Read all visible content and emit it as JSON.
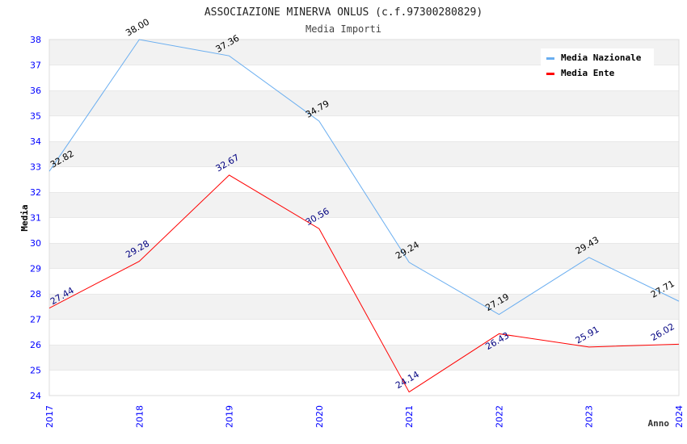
{
  "chart_data": {
    "type": "line",
    "title": "ASSOCIAZIONE MINERVA ONLUS (c.f.97300280829)",
    "subtitle": "Media Importi",
    "xlabel": "Anno",
    "ylabel": "Media",
    "categories": [
      "2017",
      "2018",
      "2019",
      "2020",
      "2021",
      "2022",
      "2023",
      "2024"
    ],
    "ylim": [
      24,
      38
    ],
    "yticks": [
      "24",
      "25",
      "26",
      "27",
      "28",
      "29",
      "30",
      "31",
      "32",
      "33",
      "34",
      "35",
      "36",
      "37",
      "38"
    ],
    "legend_position": "top-right",
    "series": [
      {
        "name": "Media Nazionale",
        "color": "#6aaef0",
        "label_color": "#000000",
        "values": [
          32.82,
          38.0,
          37.36,
          34.79,
          29.24,
          27.19,
          29.43,
          27.71
        ],
        "labels": [
          "32.82",
          "38.00",
          "37.36",
          "34.79",
          "29.24",
          "27.19",
          "29.43",
          "27.71"
        ]
      },
      {
        "name": "Media Ente",
        "color": "#ff0000",
        "label_color": "#000080",
        "values": [
          27.44,
          29.28,
          32.67,
          30.56,
          24.14,
          26.43,
          25.91,
          26.02
        ],
        "labels": [
          "27.44",
          "29.28",
          "32.67",
          "30.56",
          "24.14",
          "26.43",
          "25.91",
          "26.02"
        ]
      }
    ]
  }
}
